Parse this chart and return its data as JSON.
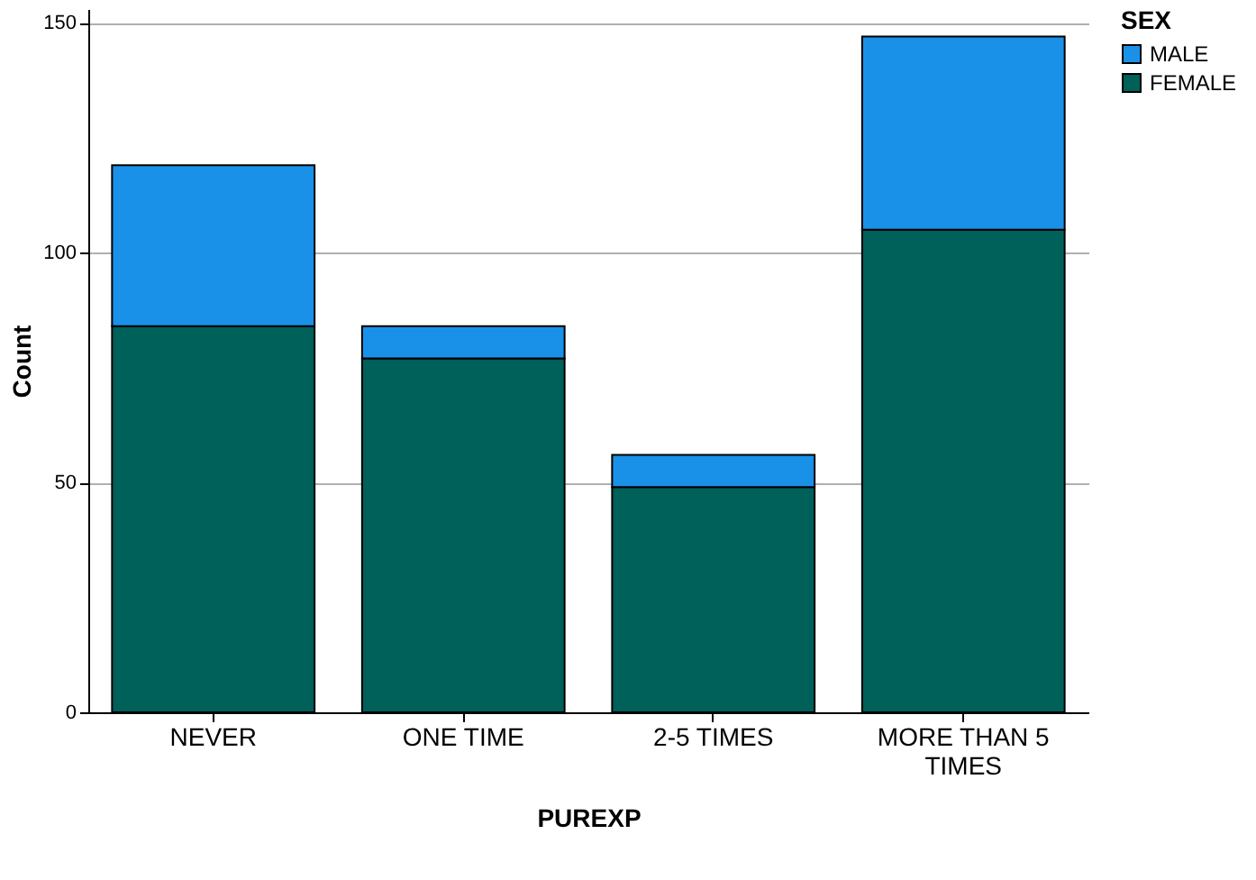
{
  "chart_data": {
    "type": "bar",
    "stacked": true,
    "xlabel": "PUREXP",
    "ylabel": "Count",
    "legend_title": "SEX",
    "categories": [
      "NEVER",
      "ONE TIME",
      "2-5 TIMES",
      "MORE THAN 5 TIMES"
    ],
    "series": [
      {
        "name": "FEMALE",
        "color": "#00605a",
        "values": [
          84,
          77,
          49,
          105
        ]
      },
      {
        "name": "MALE",
        "color": "#1a91e8",
        "values": [
          35,
          7,
          7,
          42
        ]
      }
    ],
    "ylim": [
      0,
      153
    ],
    "yticks": [
      0,
      50,
      100,
      150
    ],
    "grid": "y",
    "legend": "top right"
  }
}
